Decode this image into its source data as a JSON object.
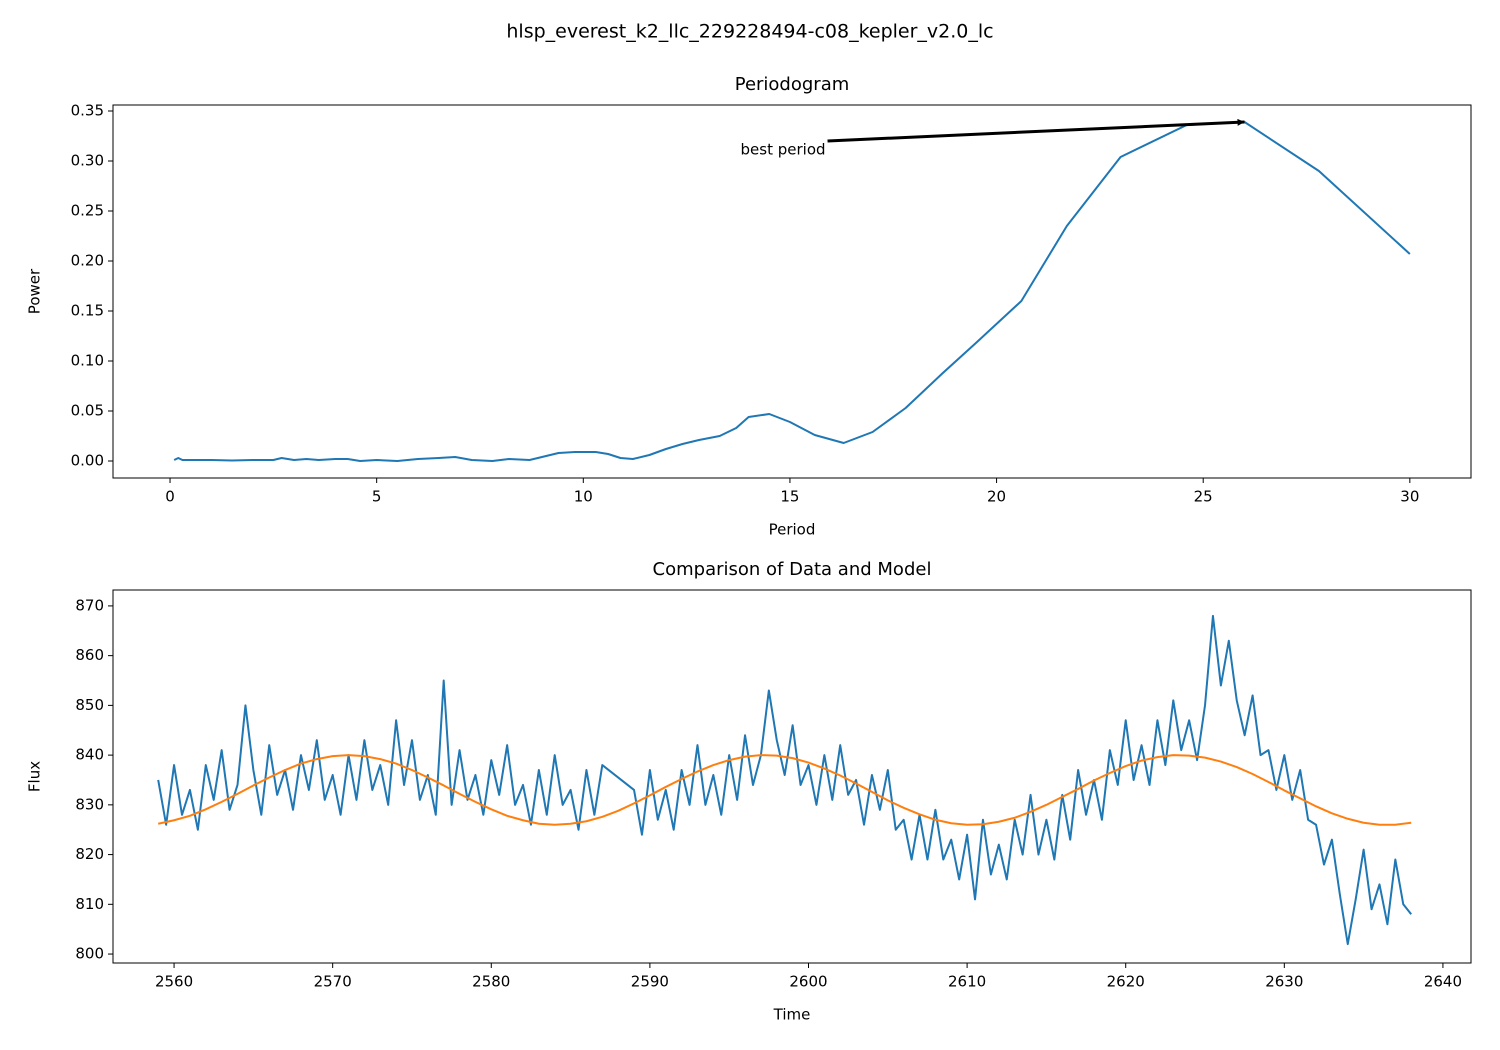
{
  "title": "hlsp_everest_k2_llc_229228494-c08_kepler_v2.0_lc",
  "chart_data": [
    {
      "type": "line",
      "title": "Periodogram",
      "x_label": "Period",
      "y_label": "Power",
      "x": [
        0.1,
        0.2,
        0.3,
        0.5,
        1,
        1.5,
        2,
        2.5,
        2.7,
        3,
        3.3,
        3.6,
        4,
        4.3,
        4.6,
        5,
        5.5,
        6,
        6.5,
        6.9,
        7.3,
        7.8,
        8.2,
        8.7,
        9,
        9.4,
        9.8,
        10.3,
        10.6,
        10.9,
        11.2,
        11.6,
        12,
        12.4,
        12.8,
        13.3,
        13.7,
        14,
        14.5,
        15,
        15.6,
        16.3,
        17,
        17.8,
        18.7,
        19.5,
        20.6,
        21.7,
        23,
        24.6,
        26,
        27.8,
        30
      ],
      "series": [
        {
          "color": "#1f77b4",
          "values": [
            0.001,
            0.003,
            0.001,
            0.001,
            0.001,
            0.0005,
            0.001,
            0.001,
            0.003,
            0.001,
            0.002,
            0.001,
            0.002,
            0.002,
            0,
            0.001,
            0,
            0.002,
            0.003,
            0.004,
            0.001,
            0,
            0.002,
            0.001,
            0.004,
            0.008,
            0.009,
            0.009,
            0.007,
            0.003,
            0.002,
            0.006,
            0.012,
            0.017,
            0.021,
            0.025,
            0.033,
            0.044,
            0.047,
            0.039,
            0.026,
            0.018,
            0.029,
            0.053,
            0.088,
            0.118,
            0.16,
            0.235,
            0.304,
            0.336,
            0.339,
            0.29,
            0.207
          ]
        }
      ],
      "annotations": [
        {
          "text": "best period",
          "x": 26,
          "y": 0.339
        }
      ],
      "xlim": [
        -1.38,
        31.48
      ],
      "ylim": [
        -0.017,
        0.356
      ],
      "xticks": [
        0,
        5,
        10,
        15,
        20,
        25,
        30
      ],
      "yticks": [
        {
          "value": 0,
          "label": "0.00"
        },
        0.05,
        {
          "value": 0.1,
          "label": "0.10"
        },
        0.15,
        {
          "value": 0.2,
          "label": "0.20"
        },
        0.25,
        {
          "value": 0.3,
          "label": "0.30"
        },
        0.35
      ]
    },
    {
      "type": "line",
      "title": "Comparison of Data and Model",
      "x_label": "Time",
      "y_label": "Flux",
      "series": [
        {
          "color": "#1f77b4",
          "x": [
            2559,
            2559.5,
            2560,
            2560.5,
            2561,
            2561.5,
            2562,
            2562.5,
            2563,
            2563.5,
            2564,
            2564.5,
            2565,
            2565.5,
            2566,
            2566.5,
            2567,
            2567.5,
            2568,
            2568.5,
            2569,
            2569.5,
            2570,
            2570.5,
            2571,
            2571.5,
            2572,
            2572.5,
            2573,
            2573.5,
            2574,
            2574.5,
            2575,
            2575.5,
            2576,
            2576.5,
            2577,
            2577.5,
            2578,
            2578.5,
            2579,
            2579.5,
            2580,
            2580.5,
            2581,
            2581.5,
            2582,
            2582.5,
            2583,
            2583.5,
            2584,
            2584.5,
            2585,
            2585.5,
            2586,
            2586.5,
            2587,
            2589,
            2589.5,
            2590,
            2590.5,
            2591,
            2591.5,
            2592,
            2592.5,
            2593,
            2593.5,
            2594,
            2594.5,
            2595,
            2595.5,
            2596,
            2596.5,
            2597,
            2597.5,
            2598,
            2598.5,
            2599,
            2599.5,
            2600,
            2600.5,
            2601,
            2601.5,
            2602,
            2602.5,
            2603,
            2603.5,
            2604,
            2604.5,
            2605,
            2605.5,
            2606,
            2606.5,
            2607,
            2607.5,
            2608,
            2608.5,
            2609,
            2609.5,
            2610,
            2610.5,
            2611,
            2611.5,
            2612,
            2612.5,
            2613,
            2613.5,
            2614,
            2614.5,
            2615,
            2615.5,
            2616,
            2616.5,
            2617,
            2617.5,
            2618,
            2618.5,
            2619,
            2619.5,
            2620,
            2620.5,
            2621,
            2621.5,
            2622,
            2622.5,
            2623,
            2623.5,
            2624,
            2624.5,
            2625,
            2625.5,
            2626,
            2626.5,
            2627,
            2627.5,
            2628,
            2628.5,
            2629,
            2629.5,
            2630,
            2630.5,
            2631,
            2631.5,
            2632,
            2632.5,
            2633,
            2633.5,
            2634,
            2634.5,
            2635,
            2635.5,
            2636,
            2636.5,
            2637,
            2637.5,
            2638
          ],
          "values": [
            835,
            826,
            838,
            828,
            833,
            825,
            838,
            831,
            841,
            829,
            834,
            850,
            837,
            828,
            842,
            832,
            837,
            829,
            840,
            833,
            843,
            831,
            836,
            828,
            840,
            831,
            843,
            833,
            838,
            830,
            847,
            834,
            843,
            831,
            836,
            828,
            855,
            830,
            841,
            831,
            836,
            828,
            839,
            832,
            842,
            830,
            834,
            826,
            837,
            828,
            840,
            830,
            833,
            825,
            837,
            828,
            838,
            833,
            824,
            837,
            827,
            833,
            825,
            837,
            830,
            842,
            830,
            836,
            828,
            840,
            831,
            844,
            834,
            840,
            853,
            843,
            836,
            846,
            834,
            838,
            830,
            840,
            831,
            842,
            832,
            835,
            826,
            836,
            829,
            837,
            825,
            827,
            819,
            828,
            819,
            829,
            819,
            823,
            815,
            824,
            811,
            827,
            816,
            822,
            815,
            827,
            820,
            832,
            820,
            827,
            819,
            832,
            823,
            837,
            828,
            835,
            827,
            841,
            834,
            847,
            835,
            842,
            834,
            847,
            838,
            851,
            841,
            847,
            839,
            850,
            868,
            854,
            863,
            851,
            844,
            852,
            840,
            841,
            833,
            840,
            831,
            837,
            827,
            826,
            818,
            823,
            812,
            802,
            811,
            821,
            809,
            814,
            806,
            819,
            810,
            808
          ]
        },
        {
          "color": "#ff7f0e",
          "x": [
            2559,
            2560,
            2561,
            2562,
            2563,
            2564,
            2565,
            2566,
            2567,
            2568,
            2569,
            2570,
            2571,
            2572,
            2573,
            2574,
            2575,
            2576,
            2577,
            2578,
            2579,
            2580,
            2581,
            2582,
            2583,
            2584,
            2585,
            2586,
            2587,
            2588,
            2589,
            2590,
            2591,
            2592,
            2593,
            2594,
            2595,
            2596,
            2597,
            2598,
            2599,
            2600,
            2601,
            2602,
            2603,
            2604,
            2605,
            2606,
            2607,
            2608,
            2609,
            2610,
            2611,
            2612,
            2613,
            2614,
            2615,
            2616,
            2617,
            2618,
            2619,
            2620,
            2621,
            2622,
            2623,
            2624,
            2625,
            2626,
            2627,
            2628,
            2629,
            2630,
            2631,
            2632,
            2633,
            2634,
            2635,
            2636,
            2637,
            2638
          ],
          "values": [
            826.2,
            826.9,
            827.8,
            829.1,
            830.6,
            832.2,
            833.9,
            835.5,
            837,
            838.3,
            839.2,
            839.8,
            840,
            839.8,
            839.2,
            838.3,
            837,
            835.5,
            833.9,
            832.2,
            830.6,
            829.1,
            827.8,
            826.9,
            826.2,
            826,
            826.2,
            826.7,
            827.6,
            828.8,
            830.3,
            831.9,
            833.6,
            835.2,
            836.7,
            838,
            839,
            839.7,
            840,
            839.9,
            839.4,
            838.5,
            837.3,
            835.9,
            834.3,
            832.6,
            830.9,
            829.4,
            828.1,
            827,
            826.3,
            826,
            826.1,
            826.6,
            827.4,
            828.6,
            830,
            831.6,
            833.2,
            834.9,
            836.4,
            837.8,
            838.9,
            839.6,
            840,
            839.9,
            839.5,
            838.7,
            837.6,
            836.2,
            834.6,
            832.9,
            831.3,
            829.7,
            828.3,
            827.2,
            826.4,
            826,
            826,
            826.4
          ]
        }
      ],
      "xlim": [
        2556.15,
        2641.77
      ],
      "ylim": [
        798.2,
        873.2
      ],
      "xticks": [
        2560,
        2570,
        2580,
        2590,
        2600,
        2610,
        2620,
        2630,
        2640
      ],
      "yticks": [
        800,
        810,
        820,
        830,
        840,
        850,
        860,
        870
      ]
    }
  ]
}
